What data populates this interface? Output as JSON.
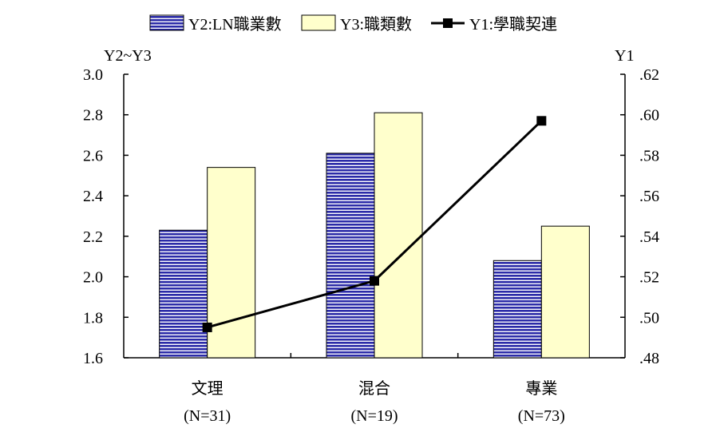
{
  "chart_data": {
    "type": "bar",
    "categories": [
      "文理",
      "混合",
      "專業"
    ],
    "category_sublabels": [
      "(N=31)",
      "(N=19)",
      "(N=73)"
    ],
    "left_axis": {
      "label": "Y2~Y3",
      "ylim": [
        1.6,
        3.0
      ],
      "ticks": [
        "1.6",
        "1.8",
        "2.0",
        "2.2",
        "2.4",
        "2.6",
        "2.8",
        "3.0"
      ]
    },
    "right_axis": {
      "label": "Y1",
      "ylim": [
        0.48,
        0.62
      ],
      "ticks": [
        ".48",
        ".50",
        ".52",
        ".54",
        ".56",
        ".58",
        ".60",
        ".62"
      ]
    },
    "series": [
      {
        "name": "Y2:LN職業數",
        "kind": "bar",
        "axis": "left",
        "values": [
          2.23,
          2.61,
          2.08
        ],
        "color": "#2b2ba8",
        "pattern": "horizontal-stripes"
      },
      {
        "name": "Y3:職類數",
        "kind": "bar",
        "axis": "left",
        "values": [
          2.54,
          2.81,
          2.25
        ],
        "color": "#ffffcc"
      },
      {
        "name": "Y1:學職契連",
        "kind": "line",
        "axis": "right",
        "values": [
          0.495,
          0.518,
          0.597
        ],
        "color": "#000000",
        "marker": "square"
      }
    ],
    "legend_position": "top",
    "grid": false
  }
}
